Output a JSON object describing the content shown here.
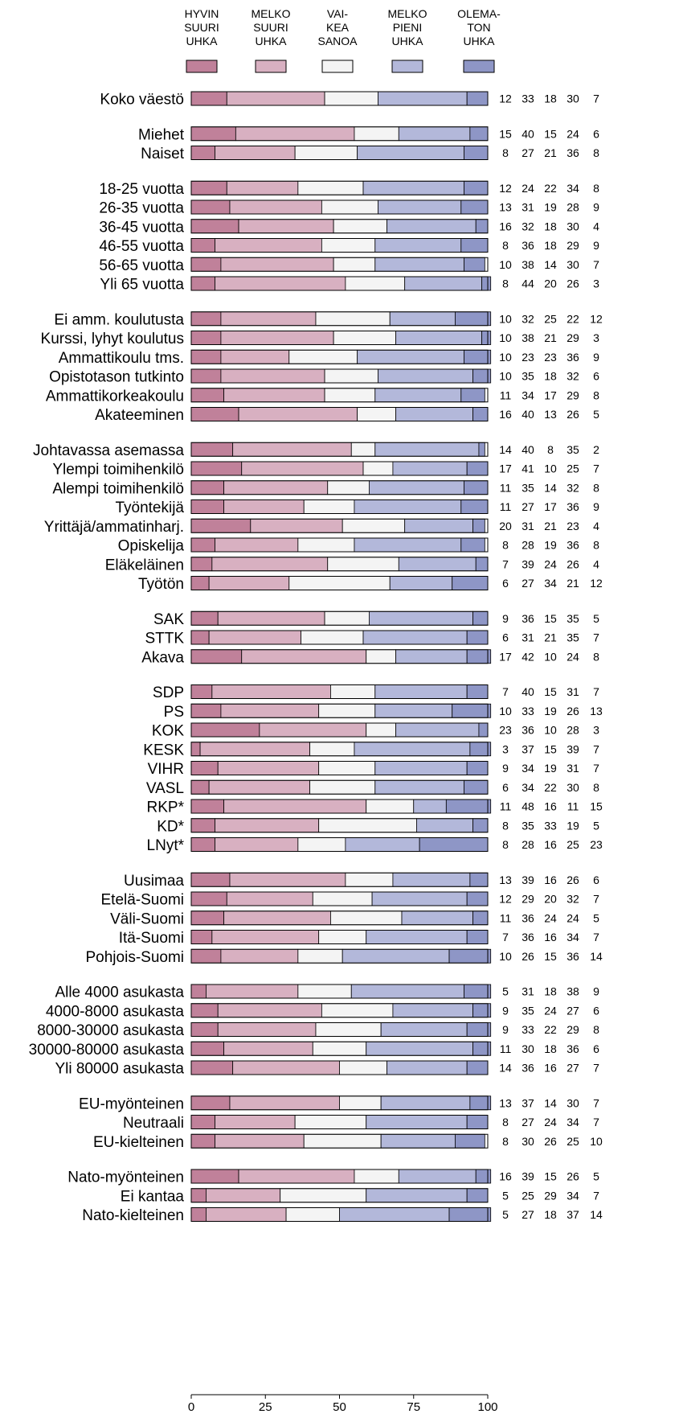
{
  "chart_data": {
    "type": "bar",
    "stacked": true,
    "orientation": "horizontal",
    "xlim": [
      0,
      100
    ],
    "x_ticks": [
      "0",
      "25",
      "50",
      "75",
      "100"
    ],
    "legend_position": "top",
    "series": [
      {
        "name": [
          "HYVIN",
          "SUURI",
          "UHKA"
        ],
        "color": "#c0819a"
      },
      {
        "name": [
          "MELKO",
          "SUURI",
          "UHKA"
        ],
        "color": "#d8b0c1"
      },
      {
        "name": [
          "VAI-",
          "KEA",
          "SANOA"
        ],
        "color": "#f4f4f4"
      },
      {
        "name": [
          "MELKO",
          "PIENI",
          "UHKA"
        ],
        "color": "#b3b8da"
      },
      {
        "name": [
          "OLEMA-",
          "TON",
          "UHKA"
        ],
        "color": "#8e96c6"
      }
    ],
    "groups": [
      {
        "rows": [
          {
            "label": "Koko väestö",
            "values": [
              12,
              33,
              18,
              30,
              7
            ]
          }
        ]
      },
      {
        "rows": [
          {
            "label": "Miehet",
            "values": [
              15,
              40,
              15,
              24,
              6
            ]
          },
          {
            "label": "Naiset",
            "values": [
              8,
              27,
              21,
              36,
              8
            ]
          }
        ]
      },
      {
        "rows": [
          {
            "label": "18-25 vuotta",
            "values": [
              12,
              24,
              22,
              34,
              8
            ]
          },
          {
            "label": "26-35 vuotta",
            "values": [
              13,
              31,
              19,
              28,
              9
            ]
          },
          {
            "label": "36-45 vuotta",
            "values": [
              16,
              32,
              18,
              30,
              4
            ]
          },
          {
            "label": "46-55 vuotta",
            "values": [
              8,
              36,
              18,
              29,
              9
            ]
          },
          {
            "label": "56-65 vuotta",
            "values": [
              10,
              38,
              14,
              30,
              7
            ]
          },
          {
            "label": "Yli 65 vuotta",
            "values": [
              8,
              44,
              20,
              26,
              3
            ]
          }
        ]
      },
      {
        "rows": [
          {
            "label": "Ei amm. koulutusta",
            "values": [
              10,
              32,
              25,
              22,
              12
            ]
          },
          {
            "label": "Kurssi, lyhyt koulutus",
            "values": [
              10,
              38,
              21,
              29,
              3
            ]
          },
          {
            "label": "Ammattikoulu tms.",
            "values": [
              10,
              23,
              23,
              36,
              9
            ]
          },
          {
            "label": "Opistotason tutkinto",
            "values": [
              10,
              35,
              18,
              32,
              6
            ]
          },
          {
            "label": "Ammattikorkeakoulu",
            "values": [
              11,
              34,
              17,
              29,
              8
            ]
          },
          {
            "label": "Akateeminen",
            "values": [
              16,
              40,
              13,
              26,
              5
            ]
          }
        ]
      },
      {
        "rows": [
          {
            "label": "Johtavassa asemassa",
            "values": [
              14,
              40,
              8,
              35,
              2
            ]
          },
          {
            "label": "Ylempi toimihenkilö",
            "values": [
              17,
              41,
              10,
              25,
              7
            ]
          },
          {
            "label": "Alempi toimihenkilö",
            "values": [
              11,
              35,
              14,
              32,
              8
            ]
          },
          {
            "label": "Työntekijä",
            "values": [
              11,
              27,
              17,
              36,
              9
            ]
          },
          {
            "label": "Yrittäjä/ammatinharj.",
            "values": [
              20,
              31,
              21,
              23,
              4
            ]
          },
          {
            "label": "Opiskelija",
            "values": [
              8,
              28,
              19,
              36,
              8
            ]
          },
          {
            "label": "Eläkeläinen",
            "values": [
              7,
              39,
              24,
              26,
              4
            ]
          },
          {
            "label": "Työtön",
            "values": [
              6,
              27,
              34,
              21,
              12
            ]
          }
        ]
      },
      {
        "rows": [
          {
            "label": "SAK",
            "values": [
              9,
              36,
              15,
              35,
              5
            ]
          },
          {
            "label": "STTK",
            "values": [
              6,
              31,
              21,
              35,
              7
            ]
          },
          {
            "label": "Akava",
            "values": [
              17,
              42,
              10,
              24,
              8
            ]
          }
        ]
      },
      {
        "rows": [
          {
            "label": "SDP",
            "values": [
              7,
              40,
              15,
              31,
              7
            ]
          },
          {
            "label": "PS",
            "values": [
              10,
              33,
              19,
              26,
              13
            ]
          },
          {
            "label": "KOK",
            "values": [
              23,
              36,
              10,
              28,
              3
            ]
          },
          {
            "label": "KESK",
            "values": [
              3,
              37,
              15,
              39,
              7
            ]
          },
          {
            "label": "VIHR",
            "values": [
              9,
              34,
              19,
              31,
              7
            ]
          },
          {
            "label": "VASL",
            "values": [
              6,
              34,
              22,
              30,
              8
            ]
          },
          {
            "label": "RKP*",
            "values": [
              11,
              48,
              16,
              11,
              15
            ]
          },
          {
            "label": "KD*",
            "values": [
              8,
              35,
              33,
              19,
              5
            ]
          },
          {
            "label": "LNyt*",
            "values": [
              8,
              28,
              16,
              25,
              23
            ]
          }
        ]
      },
      {
        "rows": [
          {
            "label": "Uusimaa",
            "values": [
              13,
              39,
              16,
              26,
              6
            ]
          },
          {
            "label": "Etelä-Suomi",
            "values": [
              12,
              29,
              20,
              32,
              7
            ]
          },
          {
            "label": "Väli-Suomi",
            "values": [
              11,
              36,
              24,
              24,
              5
            ]
          },
          {
            "label": "Itä-Suomi",
            "values": [
              7,
              36,
              16,
              34,
              7
            ]
          },
          {
            "label": "Pohjois-Suomi",
            "values": [
              10,
              26,
              15,
              36,
              14
            ]
          }
        ]
      },
      {
        "rows": [
          {
            "label": "Alle 4000 asukasta",
            "values": [
              5,
              31,
              18,
              38,
              9
            ]
          },
          {
            "label": "4000-8000 asukasta",
            "values": [
              9,
              35,
              24,
              27,
              6
            ]
          },
          {
            "label": "8000-30000 asukasta",
            "values": [
              9,
              33,
              22,
              29,
              8
            ]
          },
          {
            "label": "30000-80000 asukasta",
            "values": [
              11,
              30,
              18,
              36,
              6
            ]
          },
          {
            "label": "Yli 80000 asukasta",
            "values": [
              14,
              36,
              16,
              27,
              7
            ]
          }
        ]
      },
      {
        "rows": [
          {
            "label": "EU-myönteinen",
            "values": [
              13,
              37,
              14,
              30,
              7
            ]
          },
          {
            "label": "Neutraali",
            "values": [
              8,
              27,
              24,
              34,
              7
            ]
          },
          {
            "label": "EU-kielteinen",
            "values": [
              8,
              30,
              26,
              25,
              10
            ]
          }
        ]
      },
      {
        "rows": [
          {
            "label": "Nato-myönteinen",
            "values": [
              16,
              39,
              15,
              26,
              5
            ]
          },
          {
            "label": "Ei kantaa",
            "values": [
              5,
              25,
              29,
              34,
              7
            ]
          },
          {
            "label": "Nato-kielteinen",
            "values": [
              5,
              27,
              18,
              37,
              14
            ]
          }
        ]
      }
    ]
  }
}
